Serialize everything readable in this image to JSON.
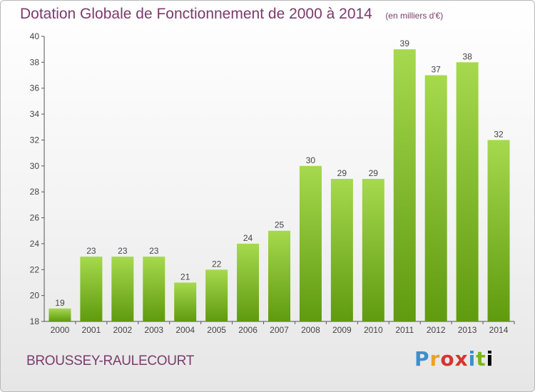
{
  "header": {
    "title": "Dotation Globale de Fonctionnement de 2000 à 2014",
    "subtitle": "(en milliers d'€)"
  },
  "footer": {
    "commune": "BROUSSEY-RAULECOURT",
    "brand": "Proxiti"
  },
  "colors": {
    "bar_top": "#a6d94e",
    "bar_bottom": "#5f9a0f",
    "axis": "#555555",
    "grid": "#cccccc",
    "title": "#7a3b6b"
  },
  "chart_data": {
    "type": "bar",
    "title": "Dotation Globale de Fonctionnement de 2000 à 2014",
    "subtitle": "(en milliers d'€)",
    "xlabel": "",
    "ylabel": "",
    "categories": [
      "2000",
      "2001",
      "2002",
      "2003",
      "2004",
      "2005",
      "2006",
      "2007",
      "2008",
      "2009",
      "2010",
      "2011",
      "2012",
      "2013",
      "2014"
    ],
    "values": [
      19,
      23,
      23,
      23,
      21,
      22,
      24,
      25,
      30,
      29,
      29,
      39,
      37,
      38,
      32
    ],
    "ylim": [
      18,
      40
    ],
    "yticks": [
      18,
      20,
      22,
      24,
      26,
      28,
      30,
      32,
      34,
      36,
      38,
      40
    ],
    "grid": false,
    "data_labels": true
  }
}
